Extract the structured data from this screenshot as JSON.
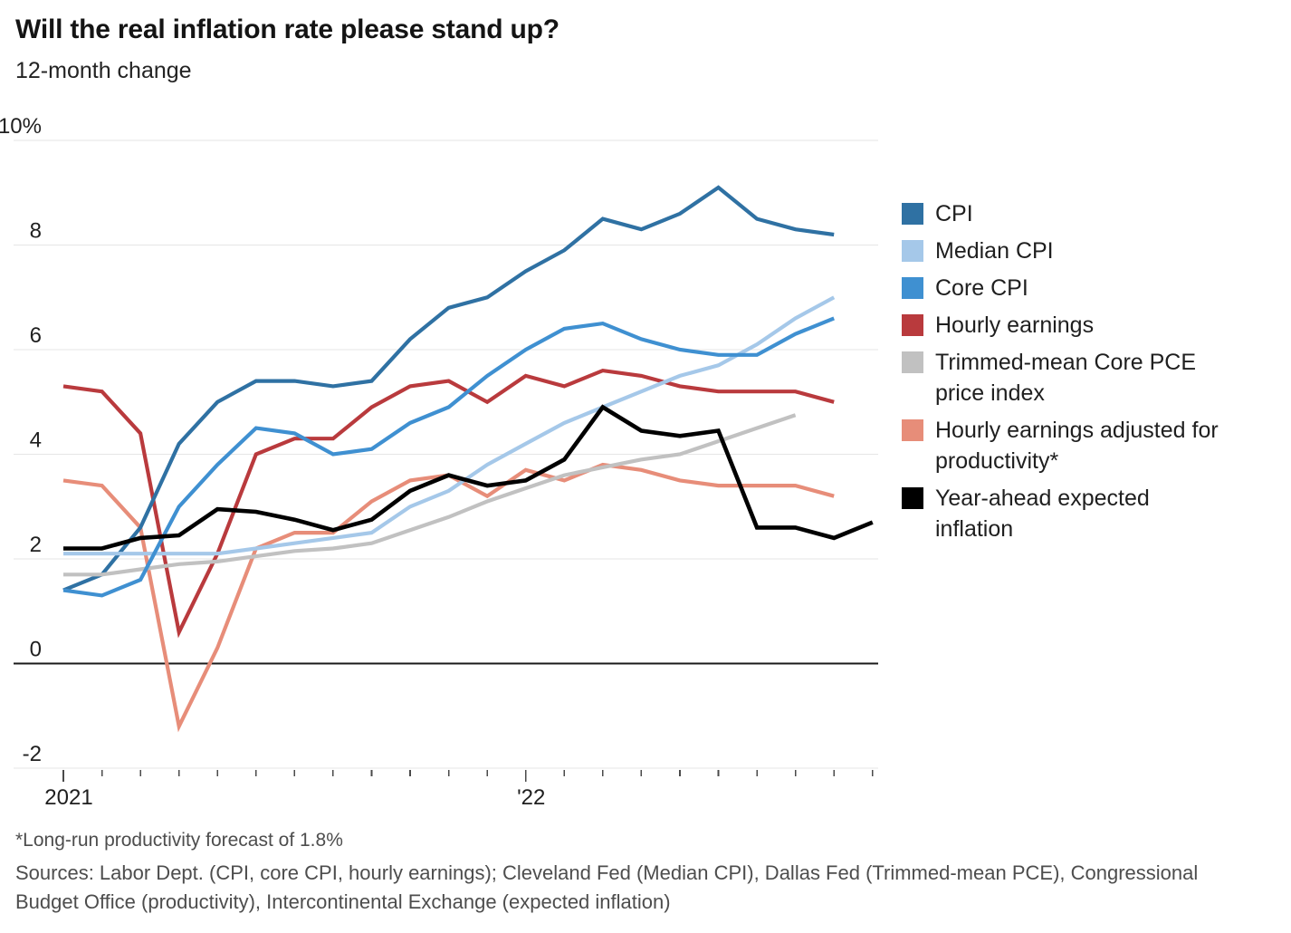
{
  "header": {
    "title": "Will the real inflation rate please stand up?",
    "subtitle": "12-month change"
  },
  "legend": [
    {
      "label": "CPI",
      "color": "#2f71a3"
    },
    {
      "label": "Median CPI",
      "color": "#a5c8e9"
    },
    {
      "label": "Core CPI",
      "color": "#3f90d1"
    },
    {
      "label": "Hourly earnings",
      "color": "#b93a3d"
    },
    {
      "label": "Trimmed-mean Core PCE\nprice index",
      "color": "#c1c1c1"
    },
    {
      "label": "Hourly earnings adjusted for\nproductivity*",
      "color": "#e78d79"
    },
    {
      "label": "Year-ahead expected\ninflation",
      "color": "#000000"
    }
  ],
  "footnote": "*Long-run productivity forecast of 1.8%",
  "sources": "Sources: Labor Dept. (CPI, core CPI, hourly earnings); Cleveland Fed (Median CPI), Dallas Fed (Trimmed-mean PCE), Congressional Budget Office (productivity), Intercontinental Exchange (expected inflation)",
  "chart_data": {
    "type": "line",
    "title": "Will the real inflation rate please stand up?",
    "subtitle": "12-month change",
    "unit": "percent",
    "grid": "horizontal",
    "legend_position": "right",
    "x": [
      "Jan 2021",
      "Feb 2021",
      "Mar 2021",
      "Apr 2021",
      "May 2021",
      "Jun 2021",
      "Jul 2021",
      "Aug 2021",
      "Sep 2021",
      "Oct 2021",
      "Nov 2021",
      "Dec 2021",
      "Jan 2022",
      "Feb 2022",
      "Mar 2022",
      "Apr 2022",
      "May 2022",
      "Jun 2022",
      "Jul 2022",
      "Aug 2022",
      "Sep 2022",
      "Oct 2022"
    ],
    "x_axis": {
      "tick_labels": [
        {
          "index": 0,
          "label": "2021"
        },
        {
          "index": 12,
          "label": "'22"
        }
      ]
    },
    "y_axis": {
      "range": [
        -2,
        10
      ],
      "ticks": [
        {
          "value": 10,
          "label": "10%"
        },
        {
          "value": 8,
          "label": "8"
        },
        {
          "value": 6,
          "label": "6"
        },
        {
          "value": 4,
          "label": "4"
        },
        {
          "value": 2,
          "label": "2"
        },
        {
          "value": 0,
          "label": "0"
        },
        {
          "value": -2,
          "label": "-2"
        }
      ],
      "zero_line": true
    },
    "series": [
      {
        "name": "CPI",
        "color": "#2f71a3",
        "values": [
          1.4,
          1.7,
          2.6,
          4.2,
          5.0,
          5.4,
          5.4,
          5.3,
          5.4,
          6.2,
          6.8,
          7.0,
          7.5,
          7.9,
          8.5,
          8.3,
          8.6,
          9.1,
          8.5,
          8.3,
          8.2,
          null
        ]
      },
      {
        "name": "Median CPI",
        "color": "#a5c8e9",
        "values": [
          2.1,
          2.1,
          2.1,
          2.1,
          2.1,
          2.2,
          2.3,
          2.4,
          2.5,
          3.0,
          3.3,
          3.8,
          4.2,
          4.6,
          4.9,
          5.2,
          5.5,
          5.7,
          6.1,
          6.6,
          7.0,
          null
        ]
      },
      {
        "name": "Core CPI",
        "color": "#3f90d1",
        "values": [
          1.4,
          1.3,
          1.6,
          3.0,
          3.8,
          4.5,
          4.4,
          4.0,
          4.1,
          4.6,
          4.9,
          5.5,
          6.0,
          6.4,
          6.5,
          6.2,
          6.0,
          5.9,
          5.9,
          6.3,
          6.6,
          null
        ]
      },
      {
        "name": "Hourly earnings",
        "color": "#b93a3d",
        "values": [
          5.3,
          5.2,
          4.4,
          0.6,
          2.1,
          4.0,
          4.3,
          4.3,
          4.9,
          5.3,
          5.4,
          5.0,
          5.5,
          5.3,
          5.6,
          5.5,
          5.3,
          5.2,
          5.2,
          5.2,
          5.0,
          null
        ]
      },
      {
        "name": "Trimmed-mean Core PCE price index",
        "color": "#c1c1c1",
        "values": [
          1.7,
          1.7,
          1.8,
          1.9,
          1.95,
          2.05,
          2.15,
          2.2,
          2.3,
          2.55,
          2.8,
          3.1,
          3.35,
          3.6,
          3.75,
          3.9,
          4.0,
          4.25,
          4.5,
          4.75,
          null,
          null
        ]
      },
      {
        "name": "Hourly earnings adjusted for productivity*",
        "color": "#e78d79",
        "values": [
          3.5,
          3.4,
          2.6,
          -1.2,
          0.3,
          2.2,
          2.5,
          2.5,
          3.1,
          3.5,
          3.6,
          3.2,
          3.7,
          3.5,
          3.8,
          3.7,
          3.5,
          3.4,
          3.4,
          3.4,
          3.2,
          null
        ]
      },
      {
        "name": "Year-ahead expected inflation",
        "color": "#000000",
        "values": [
          2.2,
          2.2,
          2.4,
          2.45,
          2.95,
          2.9,
          2.75,
          2.55,
          2.75,
          3.3,
          3.6,
          3.4,
          3.5,
          3.9,
          4.9,
          4.45,
          4.35,
          4.45,
          2.6,
          2.6,
          2.4,
          2.7
        ]
      }
    ],
    "draw_order": [
      3,
      5,
      0,
      4,
      1,
      2,
      6
    ]
  }
}
